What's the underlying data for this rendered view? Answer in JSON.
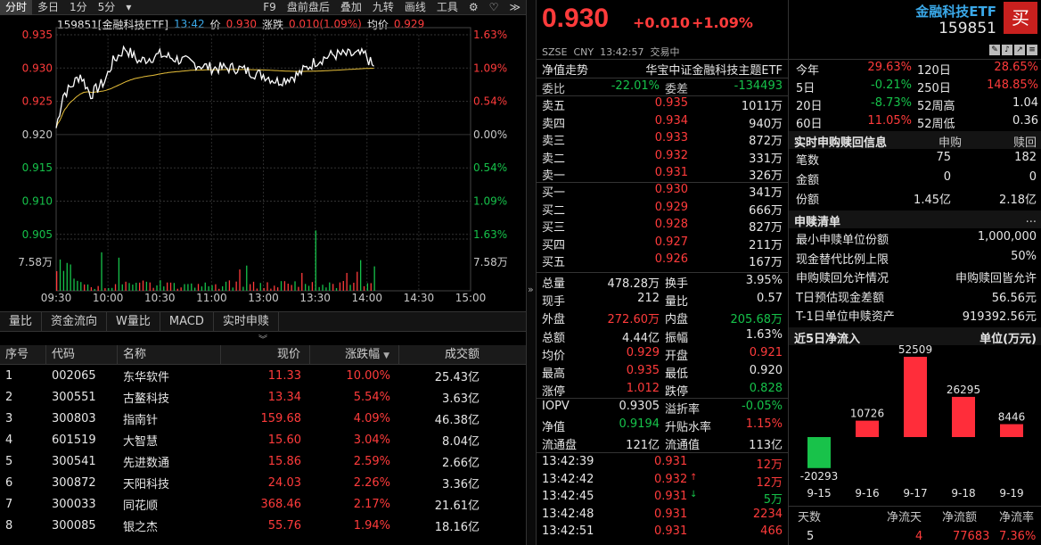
{
  "toolbar": {
    "tabs": [
      "分时",
      "多日",
      "1分",
      "5分"
    ],
    "dropdown": "▾",
    "right": [
      "F9",
      "盘前盘后",
      "叠加",
      "九转",
      "画线",
      "工具"
    ],
    "gear": "⚙",
    "heart": "♡",
    "more": "≫"
  },
  "info": {
    "code_name": "159851[金融科技ETF]",
    "time": "13:42",
    "price_label": "价",
    "price": "0.930",
    "chg_label": "涨跌",
    "chg": "0.010(1.09%)",
    "avg_label": "均价",
    "avg": "0.929"
  },
  "chart": {
    "y_left": [
      "0.935",
      "0.930",
      "0.925",
      "0.920",
      "0.915",
      "0.910",
      "0.905"
    ],
    "y_right": [
      "1.63%",
      "1.09%",
      "0.54%",
      "0.00%",
      "0.54%",
      "1.09%",
      "1.63%"
    ],
    "vol_label": "7.58万",
    "x_labels": [
      "09:30",
      "10:00",
      "10:30",
      "11:00",
      "13:00",
      "13:30",
      "14:00",
      "14:30",
      "15:00"
    ],
    "line_color": "#ffffff",
    "avg_color": "#e8c03a"
  },
  "tabs2": [
    "量比",
    "资金流向",
    "W量比",
    "MACD",
    "实时申赎"
  ],
  "table": {
    "headers": [
      "序号",
      "代码",
      "名称",
      "现价",
      "涨跌幅",
      "成交额"
    ],
    "rows": [
      [
        "1",
        "002065",
        "东华软件",
        "11.33",
        "10.00%",
        "25.43亿"
      ],
      [
        "2",
        "300551",
        "古鳌科技",
        "13.34",
        "5.54%",
        "3.63亿"
      ],
      [
        "3",
        "300803",
        "指南针",
        "159.68",
        "4.09%",
        "46.38亿"
      ],
      [
        "4",
        "601519",
        "大智慧",
        "15.60",
        "3.04%",
        "8.04亿"
      ],
      [
        "5",
        "300541",
        "先进数通",
        "15.86",
        "2.59%",
        "2.66亿"
      ],
      [
        "6",
        "300872",
        "天阳科技",
        "24.03",
        "2.26%",
        "3.36亿"
      ],
      [
        "7",
        "300033",
        "同花顺",
        "368.46",
        "2.17%",
        "21.61亿"
      ],
      [
        "8",
        "300085",
        "银之杰",
        "55.76",
        "1.94%",
        "18.16亿"
      ]
    ]
  },
  "quote": {
    "price": "0.930",
    "chg": "+0.010",
    "pct": "+1.09%",
    "market": "SZSE",
    "currency": "CNY",
    "time": "13:42:57",
    "status": "交易中",
    "nav_label": "净值走势",
    "fund_name": "华宝中证金融科技主题ETF",
    "weibi_label": "委比",
    "weibi": "-22.01%",
    "weicha_label": "委差",
    "weicha": "-134493",
    "asks": [
      [
        "卖五",
        "0.935",
        "1011万"
      ],
      [
        "卖四",
        "0.934",
        "940万"
      ],
      [
        "卖三",
        "0.933",
        "872万"
      ],
      [
        "卖二",
        "0.932",
        "331万"
      ],
      [
        "卖一",
        "0.931",
        "326万"
      ]
    ],
    "bids": [
      [
        "买一",
        "0.930",
        "341万"
      ],
      [
        "买二",
        "0.929",
        "666万"
      ],
      [
        "买三",
        "0.928",
        "827万"
      ],
      [
        "买四",
        "0.927",
        "211万"
      ],
      [
        "买五",
        "0.926",
        "167万"
      ]
    ],
    "stats": [
      [
        "总量",
        "478.28万",
        "换手",
        "3.95%"
      ],
      [
        "现手",
        "212",
        "量比",
        "0.57"
      ],
      [
        "外盘",
        "272.60万",
        "内盘",
        "205.68万"
      ],
      [
        "总额",
        "4.44亿",
        "振幅",
        "1.63%"
      ],
      [
        "均价",
        "0.929",
        "开盘",
        "0.921"
      ],
      [
        "最高",
        "0.935",
        "最低",
        "0.920"
      ],
      [
        "涨停",
        "1.012",
        "跌停",
        "0.828"
      ]
    ],
    "stats2": [
      [
        "IOPV",
        "0.9305",
        "溢折率",
        "-0.05%"
      ],
      [
        "净值",
        "0.9194",
        "升贴水率",
        "1.15%"
      ],
      [
        "流通盘",
        "121亿",
        "流通值",
        "113亿"
      ]
    ],
    "ticks": [
      [
        "13:42:39",
        "0.931",
        "",
        "12万"
      ],
      [
        "13:42:42",
        "0.932",
        "↑",
        "12万"
      ],
      [
        "13:42:45",
        "0.931",
        "↓",
        "5万"
      ],
      [
        "13:42:48",
        "0.931",
        "",
        "2234"
      ],
      [
        "13:42:51",
        "0.931",
        "",
        "466"
      ]
    ]
  },
  "side": {
    "title": "金融科技ETF",
    "code": "159851",
    "buy": "买",
    "perf": [
      [
        "今年",
        "29.63%",
        "120日",
        "28.65%"
      ],
      [
        "5日",
        "-0.21%",
        "250日",
        "148.85%"
      ],
      [
        "20日",
        "-8.73%",
        "52周高",
        "1.04"
      ],
      [
        "60日",
        "11.05%",
        "52周低",
        "0.36"
      ]
    ],
    "realtime_title": "实时申购赎回信息",
    "realtime_h1": "申购",
    "realtime_h2": "赎回",
    "realtime": [
      [
        "笔数",
        "75",
        "182"
      ],
      [
        "金额",
        "0",
        "0"
      ],
      [
        "份额",
        "1.45亿",
        "2.18亿"
      ]
    ],
    "list_title": "申赎清单",
    "list_more": "...",
    "list": [
      [
        "最小申赎单位份额",
        "1,000,000"
      ],
      [
        "现金替代比例上限",
        "50%"
      ],
      [
        "申购赎回允许情况",
        "申购赎回皆允许"
      ],
      [
        "T日预估现金差额",
        "56.56元"
      ],
      [
        "T-1日单位申赎资产",
        "919392.56元"
      ]
    ],
    "flow_title": "近5日净流入",
    "flow_unit": "单位(万元)",
    "flow": {
      "categories": [
        "9-15",
        "9-16",
        "9-17",
        "9-18",
        "9-19"
      ],
      "values": [
        -20293,
        10726,
        52509,
        26295,
        8446
      ]
    },
    "flow_table_h": [
      "天数",
      "净流天",
      "净流额",
      "净流率"
    ],
    "flow_table": [
      "5",
      "4",
      "77683",
      "7.36%"
    ]
  }
}
